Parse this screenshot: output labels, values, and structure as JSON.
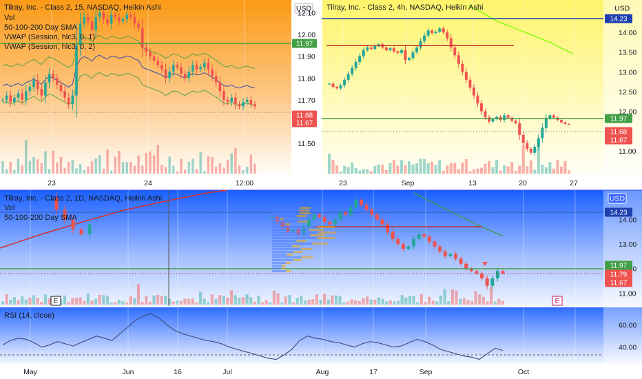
{
  "panels": {
    "tl": {
      "title": "Tilray, Inc. - Class 2, 15, NASDAQ, Heikin Ashi",
      "indicators": [
        "Vol",
        "50-100-200 Day SMA",
        "VWAP (Session, hlc3, 0, 1)",
        "VWAP (Session, hlc3, 0, 2)"
      ],
      "currency": "USD",
      "y_ticks": [
        "12.10",
        "12.00",
        "11.90",
        "11.80",
        "11.70",
        "11.60",
        "11.50"
      ],
      "x_ticks": [
        "23",
        "24",
        "12:00"
      ],
      "price_tags": [
        "11.97",
        "11.68",
        "11.67"
      ]
    },
    "tr": {
      "title": "Tilray, Inc. - Class 2, 4h, NASDAQ, Heikin Ashi",
      "currency": "USD",
      "y_ticks": [
        "14.00",
        "13.50",
        "13.00",
        "12.50",
        "12.00",
        "11.00"
      ],
      "x_ticks": [
        "23",
        "Sep",
        "13",
        "20",
        "27"
      ],
      "price_tags": [
        "14.23",
        "11.97",
        "11.68",
        "11.67"
      ]
    },
    "bl": {
      "title": "Tilray, Inc. - Class 2, 1D, NASDAQ, Heikin Ashi",
      "indicators": [
        "Vol",
        "50-100-200 Day SMA"
      ],
      "currency": "USD",
      "y_ticks": [
        "14.00",
        "13.00",
        "12.00",
        "11.00"
      ],
      "price_tags": [
        "14.23",
        "11.97",
        "11.79",
        "11.67"
      ],
      "event_markers": [
        "E",
        "E"
      ]
    },
    "rsi": {
      "title": "RSI (14, close)",
      "y_ticks": [
        "60.00",
        "40.00"
      ],
      "x_ticks": [
        "May",
        "Jun",
        "16",
        "Jul",
        "Aug",
        "17",
        "Sep",
        "Oct"
      ]
    }
  },
  "colors": {
    "up": "#26a69a",
    "down": "#ef5350",
    "green_line": "#4caf50",
    "red_line": "#d32f2f",
    "blue_line": "#1e40af"
  },
  "chart_data": [
    {
      "type": "bar",
      "title": "Tilray, Inc. - Class 2, 15, NASDAQ, Heikin Ashi",
      "x": [
        "23",
        "24",
        "12:00"
      ],
      "ylim": [
        11.45,
        12.12
      ],
      "levels": {
        "horizontal_line": 11.97,
        "last_price": 11.68,
        "close": 11.67
      }
    },
    {
      "type": "bar",
      "title": "Tilray, Inc. - Class 2, 4h, NASDAQ, Heikin Ashi",
      "x": [
        "23",
        "Sep",
        "13",
        "20",
        "27"
      ],
      "ylim": [
        10.7,
        14.35
      ],
      "levels": {
        "resistance": 14.23,
        "support": 11.97,
        "last_price": 11.68,
        "close": 11.67
      }
    },
    {
      "type": "bar",
      "title": "Tilray, Inc. - Class 2, 1D, NASDAQ, Heikin Ashi",
      "x": [
        "May",
        "Jun",
        "16",
        "Jul",
        "Aug",
        "17",
        "Sep",
        "Oct"
      ],
      "ylim": [
        10.7,
        15.0
      ],
      "levels": {
        "resistance": 14.23,
        "support": 11.97,
        "last_price": 11.79,
        "close": 11.67
      }
    },
    {
      "type": "line",
      "title": "RSI (14, close)",
      "ylim": [
        25,
        72
      ],
      "y_ticks": [
        60,
        40
      ],
      "guide": 30
    }
  ]
}
